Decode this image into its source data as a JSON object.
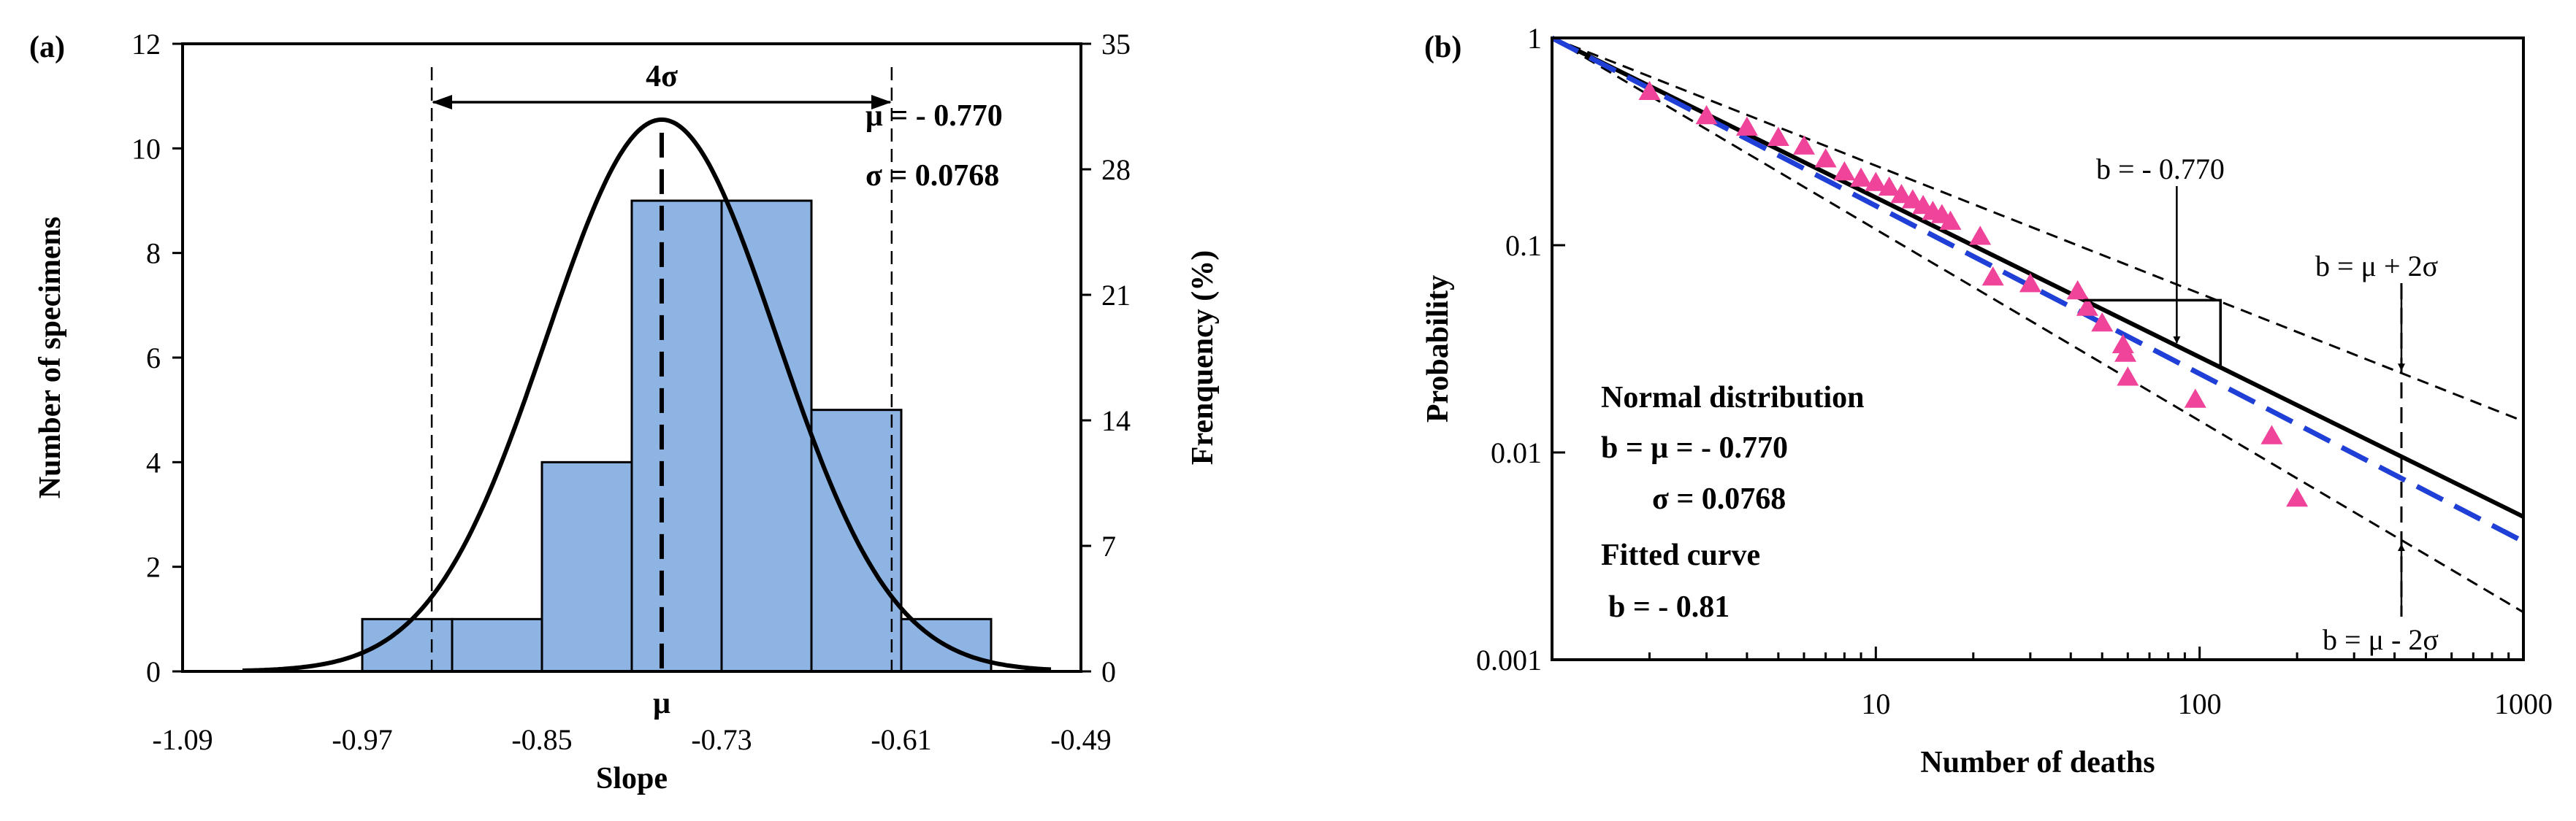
{
  "chart_data": [
    {
      "panel_label": "(a)",
      "type": "bar",
      "xlabel": "Slope",
      "ylabel": "Number of specimens",
      "y2label": "Frenquency (%)",
      "xlim": [
        -1.09,
        -0.49
      ],
      "ylim": [
        0,
        12
      ],
      "y2lim": [
        0,
        35
      ],
      "xtick_labels": [
        "-1.09",
        "-0.97",
        "-0.85",
        "-0.73",
        "-0.61",
        "-0.49"
      ],
      "xticks": [
        -1.09,
        -0.97,
        -0.85,
        -0.73,
        -0.61,
        -0.49
      ],
      "ytick_labels": [
        "0",
        "2",
        "4",
        "6",
        "8",
        "10",
        "12"
      ],
      "y2tick_labels": [
        "0",
        "7",
        "14",
        "21",
        "28",
        "35"
      ],
      "bars": [
        {
          "from": -0.97,
          "to": -0.91,
          "count": 1
        },
        {
          "from": -0.91,
          "to": -0.85,
          "count": 1
        },
        {
          "from": -0.85,
          "to": -0.79,
          "count": 4
        },
        {
          "from": -0.79,
          "to": -0.73,
          "count": 9
        },
        {
          "from": -0.73,
          "to": -0.67,
          "count": 9
        },
        {
          "from": -0.67,
          "to": -0.61,
          "count": 5
        },
        {
          "from": -0.61,
          "to": -0.55,
          "count": 1
        }
      ],
      "bar_color": "#8eb4e3",
      "normal_curve": {
        "mu": -0.77,
        "sigma": 0.0768,
        "peak": 10.55
      },
      "mu_label": "μ",
      "span_label": "4σ",
      "mu_text": "μ = - 0.770",
      "sigma_text": "σ = 0.0768"
    },
    {
      "panel_label": "(b)",
      "type": "scatter",
      "xscale": "log",
      "yscale": "log",
      "xlabel": "Number of deaths",
      "ylabel": "Probability",
      "xlim": [
        1,
        1000
      ],
      "ylim": [
        0.001,
        1
      ],
      "xtick_labels": [
        "10",
        "100",
        "1000"
      ],
      "ytick_labels": [
        "1",
        "0.1",
        "0.01",
        "0.001"
      ],
      "points_x": [
        2,
        3,
        4,
        5,
        6,
        7,
        8,
        9,
        10,
        11,
        12,
        13,
        14,
        15,
        16,
        17,
        21,
        23,
        30,
        42,
        45,
        50,
        58,
        59,
        60,
        97,
        167,
        200
      ],
      "points_y": [
        0.55,
        0.42,
        0.37,
        0.33,
        0.3,
        0.26,
        0.225,
        0.21,
        0.2,
        0.19,
        0.175,
        0.165,
        0.155,
        0.145,
        0.14,
        0.13,
        0.11,
        0.07,
        0.065,
        0.06,
        0.05,
        0.042,
        0.033,
        0.03,
        0.023,
        0.018,
        0.012,
        0.006
      ],
      "point_color": "#f0439a",
      "lines": [
        {
          "name": "mean",
          "slope": -0.77,
          "style": "solid",
          "color": "#000000"
        },
        {
          "name": "upper",
          "slope": -0.6164,
          "style": "dashed",
          "color": "#000000"
        },
        {
          "name": "lower",
          "slope": -0.9236,
          "style": "dashed",
          "color": "#000000"
        },
        {
          "name": "fitted",
          "slope": -0.81,
          "style": "dashed",
          "color": "#1f3fd6"
        }
      ],
      "annotations": {
        "b_mean": "b = - 0.770",
        "b_upper": "b = μ + 2σ",
        "b_lower": "b = μ - 2σ",
        "normal_title": "Normal distribution",
        "normal_b": "b = μ = - 0.770",
        "normal_sigma": "σ = 0.0768",
        "fitted_title": "Fitted curve",
        "fitted_b": "b = - 0.81",
        "fitted_color": "#3d63db"
      }
    }
  ]
}
